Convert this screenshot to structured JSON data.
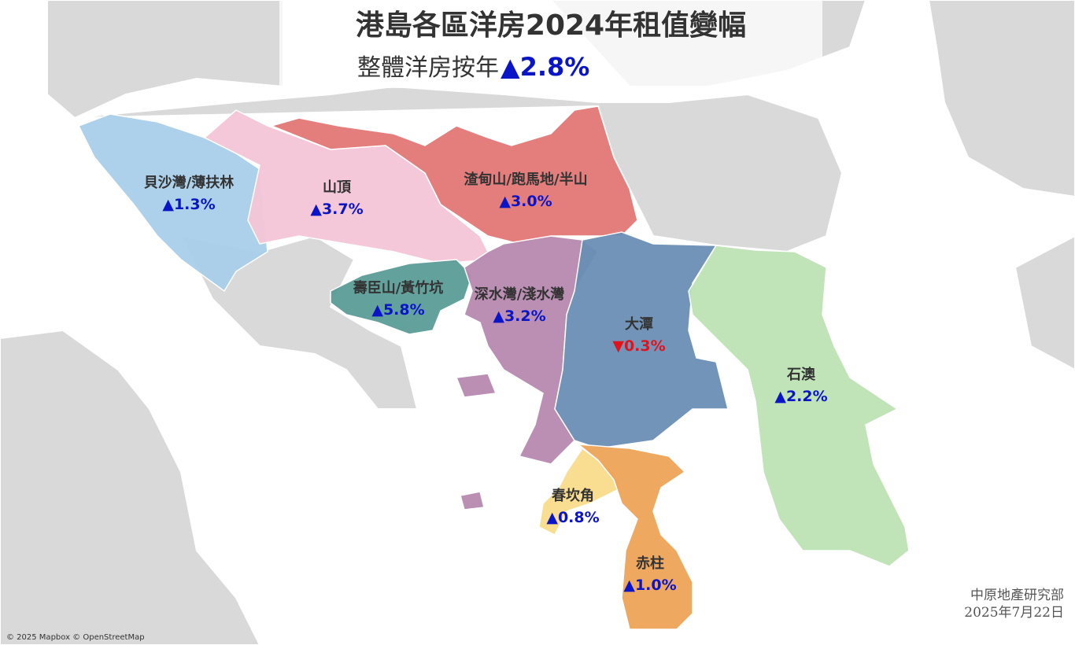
{
  "header": {
    "title": "港島各區洋房2024年租值變幅",
    "subtitle": "整體洋房按年",
    "overall_change": "▲2.8%"
  },
  "regions": [
    {
      "name": "貝沙灣/薄扶林",
      "change": "▲1.3%",
      "color": "#a9cfe9"
    },
    {
      "name": "山頂",
      "change": "▲3.7%",
      "color": "#f5c6d7"
    },
    {
      "name": "渣甸山/跑馬地/半山",
      "change": "▲3.0%",
      "color": "#e27877"
    },
    {
      "name": "壽臣山/黃竹坑",
      "change": "▲5.8%",
      "color": "#5b9c97"
    },
    {
      "name": "深水灣/淺水灣",
      "change": "▲3.2%",
      "color": "#b88ab0"
    },
    {
      "name": "大潭",
      "change": "▼0.3%",
      "color": "#6a8fb5"
    },
    {
      "name": "石澳",
      "change": "▲2.2%",
      "color": "#bde3b5"
    },
    {
      "name": "春坎角",
      "change": "▲0.8%",
      "color": "#f9dd8d"
    },
    {
      "name": "赤柱",
      "change": "▲1.0%",
      "color": "#efa458"
    }
  ],
  "credits": "© 2025 Mapbox © OpenStreetMap",
  "source": "中原地產研究部",
  "date": "2025年7月22日"
}
